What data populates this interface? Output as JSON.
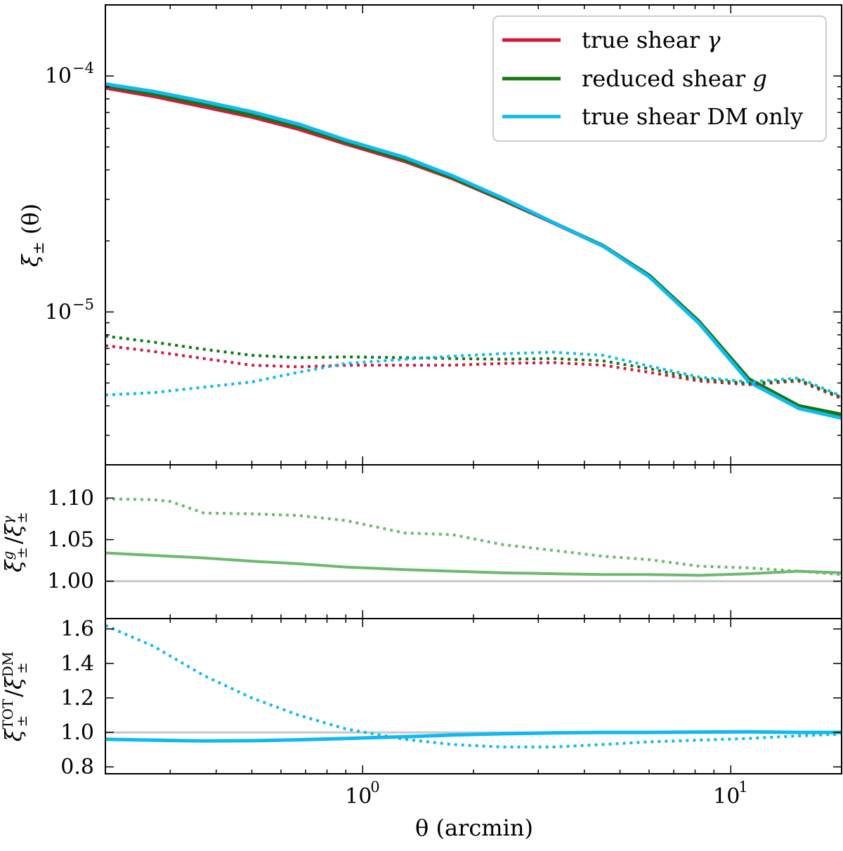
{
  "chart_data": [
    {
      "type": "line",
      "panel": "top",
      "xscale": "log",
      "yscale": "log",
      "xlim": [
        0.2,
        20
      ],
      "ylim": [
        2.25e-06,
        0.0002
      ],
      "xlabel": "",
      "ylabel": "ξ± (θ)",
      "ylabel_parts": {
        "base": "ξ",
        "sub": "±",
        "rest": " (θ)"
      },
      "yticks": [
        {
          "value": 0.0001,
          "base": "10",
          "exp": "−4"
        },
        {
          "value": 1e-05,
          "base": "10",
          "exp": "−5"
        }
      ],
      "legend": {
        "placement": "top-right",
        "entries": [
          {
            "label": "true shear ",
            "symbol": "γ",
            "color": "#d3173f"
          },
          {
            "label": "reduced shear ",
            "symbol": "g",
            "color": "#117711"
          },
          {
            "label": "true shear DM only",
            "symbol": "",
            "color": "#10b9ee"
          }
        ]
      },
      "x": [
        0.2,
        0.27,
        0.37,
        0.5,
        0.67,
        0.9,
        1.3,
        1.75,
        2.4,
        3.3,
        4.5,
        6.0,
        8.2,
        11.2,
        15.3,
        20
      ],
      "series": [
        {
          "name": "xi_plus true shear",
          "color": "#d3173f",
          "style": "solid",
          "width": 5,
          "values": [
            8.9e-05,
            8.2e-05,
            7.4e-05,
            6.7e-05,
            5.95e-05,
            5.15e-05,
            4.35e-05,
            3.68e-05,
            2.98e-05,
            2.38e-05,
            1.9e-05,
            1.43e-05,
            9.1e-06,
            5.15e-06,
            3.95e-06,
            3.62e-06
          ]
        },
        {
          "name": "xi_plus reduced shear",
          "color": "#117711",
          "style": "solid",
          "width": 5,
          "values": [
            9.1e-05,
            8.4e-05,
            7.6e-05,
            6.85e-05,
            6.1e-05,
            5.25e-05,
            4.42e-05,
            3.72e-05,
            3e-05,
            2.39e-05,
            1.91e-05,
            1.43e-05,
            9.12e-06,
            5.2e-06,
            4e-06,
            3.68e-06
          ]
        },
        {
          "name": "xi_plus DM only",
          "color": "#10b9ee",
          "style": "solid",
          "width": 5,
          "values": [
            9.25e-05,
            8.6e-05,
            7.8e-05,
            7.05e-05,
            6.25e-05,
            5.35e-05,
            4.52e-05,
            3.78e-05,
            3.04e-05,
            2.39e-05,
            1.9e-05,
            1.41e-05,
            8.95e-06,
            5.05e-06,
            3.9e-06,
            3.55e-06
          ]
        },
        {
          "name": "xi_minus true shear",
          "color": "#d3173f",
          "style": "dotted",
          "width": 4,
          "values": [
            7.2e-06,
            6.8e-06,
            6.35e-06,
            5.95e-06,
            5.85e-06,
            5.95e-06,
            5.95e-06,
            5.95e-06,
            6.05e-06,
            6.1e-06,
            5.95e-06,
            5.55e-06,
            5.1e-06,
            4.92e-06,
            5.1e-06,
            4.3e-06
          ]
        },
        {
          "name": "xi_minus reduced shear",
          "color": "#117711",
          "style": "dotted",
          "width": 4,
          "values": [
            7.9e-06,
            7.45e-06,
            6.95e-06,
            6.55e-06,
            6.4e-06,
            6.45e-06,
            6.4e-06,
            6.35e-06,
            6.3e-06,
            6.35e-06,
            6.2e-06,
            5.75e-06,
            5.2e-06,
            4.98e-06,
            5.15e-06,
            4.35e-06
          ]
        },
        {
          "name": "xi_minus DM only",
          "color": "#10b9ee",
          "style": "dotted",
          "width": 4,
          "values": [
            4.45e-06,
            4.55e-06,
            4.8e-06,
            5.05e-06,
            5.55e-06,
            6.05e-06,
            6.3e-06,
            6.5e-06,
            6.65e-06,
            6.75e-06,
            6.55e-06,
            5.9e-06,
            5.3e-06,
            5.05e-06,
            5.25e-06,
            4.4e-06
          ]
        }
      ]
    },
    {
      "type": "line",
      "panel": "middle",
      "xscale": "log",
      "yscale": "linear",
      "xlim": [
        0.2,
        20
      ],
      "ylim": [
        0.955,
        1.14
      ],
      "ylabel": "ξ±^g / ξ±^γ",
      "ylabel_parts": {
        "num": "ξ",
        "num_sup": "g",
        "sub": "±",
        "slash": "/",
        "den": "ξ",
        "den_sup": "γ"
      },
      "yticks": [
        {
          "value": 1.0,
          "label": "1.00"
        },
        {
          "value": 1.05,
          "label": "1.05"
        },
        {
          "value": 1.1,
          "label": "1.10"
        }
      ],
      "reference_line": 1.0,
      "x": [
        0.2,
        0.27,
        0.3,
        0.37,
        0.5,
        0.67,
        0.9,
        1.3,
        1.75,
        2.4,
        3.3,
        4.5,
        6.0,
        8.2,
        11.2,
        15.3,
        20
      ],
      "series": [
        {
          "name": "ratio xi_plus",
          "color": "#6fb86f",
          "style": "solid",
          "width": 4,
          "values": [
            1.034,
            1.031,
            1.03,
            1.028,
            1.024,
            1.021,
            1.017,
            1.014,
            1.012,
            1.01,
            1.009,
            1.008,
            1.008,
            1.007,
            1.009,
            1.012,
            1.01
          ]
        },
        {
          "name": "ratio xi_minus",
          "color": "#6fb86f",
          "style": "dotted",
          "width": 4,
          "values": [
            1.099,
            1.098,
            1.096,
            1.082,
            1.081,
            1.079,
            1.073,
            1.058,
            1.056,
            1.044,
            1.037,
            1.03,
            1.026,
            1.018,
            1.016,
            1.012,
            1.008
          ]
        }
      ]
    },
    {
      "type": "line",
      "panel": "bottom",
      "xscale": "log",
      "yscale": "linear",
      "xlim": [
        0.2,
        20
      ],
      "ylim": [
        0.76,
        1.66
      ],
      "xlabel": "θ (arcmin)",
      "ylabel": "ξ±^TOT / ξ±^DM",
      "ylabel_parts": {
        "num": "ξ",
        "num_sup": "TOT",
        "sub": "±",
        "slash": "/",
        "den": "ξ",
        "den_sup": "DM"
      },
      "xticks": [
        {
          "value": 1,
          "base": "10",
          "exp": "0"
        },
        {
          "value": 10,
          "base": "10",
          "exp": "1"
        }
      ],
      "yticks": [
        {
          "value": 0.8,
          "label": "0.8"
        },
        {
          "value": 1.0,
          "label": "1.0"
        },
        {
          "value": 1.2,
          "label": "1.2"
        },
        {
          "value": 1.4,
          "label": "1.4"
        },
        {
          "value": 1.6,
          "label": "1.6"
        }
      ],
      "reference_line": 1.0,
      "x": [
        0.2,
        0.27,
        0.37,
        0.5,
        0.67,
        0.9,
        1.3,
        1.75,
        2.4,
        3.3,
        4.5,
        6.0,
        8.2,
        11.2,
        15.3,
        20
      ],
      "series": [
        {
          "name": "ratio xi_plus",
          "color": "#10b9ee",
          "style": "solid",
          "width": 5,
          "values": [
            0.96,
            0.955,
            0.95,
            0.952,
            0.957,
            0.965,
            0.975,
            0.985,
            0.992,
            0.997,
            1.0,
            1.0,
            1.002,
            1.003,
            1.0,
            1.0
          ]
        },
        {
          "name": "ratio xi_minus",
          "color": "#10b9ee",
          "style": "dotted",
          "width": 4,
          "values": [
            1.62,
            1.5,
            1.33,
            1.2,
            1.1,
            1.02,
            0.96,
            0.93,
            0.915,
            0.915,
            0.93,
            0.945,
            0.955,
            0.965,
            0.98,
            0.99
          ]
        }
      ]
    }
  ]
}
